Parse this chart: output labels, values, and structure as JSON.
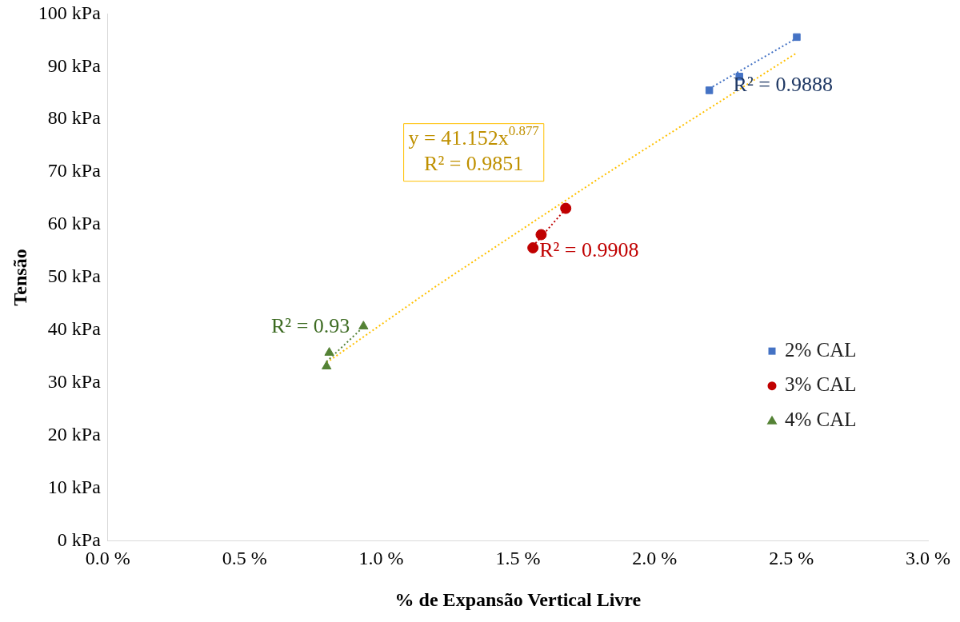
{
  "chart_data": {
    "type": "scatter",
    "xlabel": "% de Expansão Vertical Livre",
    "ylabel": "Tensão",
    "xlim": [
      0,
      3
    ],
    "ylim": [
      0,
      100
    ],
    "xticks": [
      {
        "value": 0,
        "label": "0.0 %"
      },
      {
        "value": 0.5,
        "label": "0.5 %"
      },
      {
        "value": 1,
        "label": "1.0 %"
      },
      {
        "value": 1.5,
        "label": "1.5 %"
      },
      {
        "value": 2,
        "label": "2.0 %"
      },
      {
        "value": 2.5,
        "label": "2.5 %"
      },
      {
        "value": 3,
        "label": "3.0 %"
      }
    ],
    "yticks": [
      {
        "value": 0,
        "label": "0 kPa"
      },
      {
        "value": 10,
        "label": "10 kPa"
      },
      {
        "value": 20,
        "label": "20 kPa"
      },
      {
        "value": 30,
        "label": "30 kPa"
      },
      {
        "value": 40,
        "label": "40 kPa"
      },
      {
        "value": 50,
        "label": "50 kPa"
      },
      {
        "value": 60,
        "label": "60 kPa"
      },
      {
        "value": 70,
        "label": "70 kPa"
      },
      {
        "value": 80,
        "label": "80 kPa"
      },
      {
        "value": 90,
        "label": "90 kPa"
      },
      {
        "value": 100,
        "label": "100 kPa"
      }
    ],
    "grid": false,
    "legend": "right",
    "series": [
      {
        "name": "2% CAL",
        "marker": "square",
        "color": "#4472c4",
        "x": [
          2.2,
          2.31,
          2.52
        ],
        "values": [
          85.5,
          88.1,
          95.6
        ]
      },
      {
        "name": "3% CAL",
        "marker": "circle",
        "color": "#c00000",
        "x": [
          1.555,
          1.585,
          1.675
        ],
        "values": [
          55.6,
          58.1,
          63.1
        ]
      },
      {
        "name": "4% CAL",
        "marker": "triangle",
        "color": "#548235",
        "x": [
          0.8,
          0.81,
          0.935
        ],
        "values": [
          33.1,
          35.7,
          40.7
        ]
      },
      {
        "type": "line",
        "marker": "none",
        "line_style": "dotted",
        "color": "#4472c4",
        "x": [
          2.2,
          2.52
        ],
        "values": [
          85.8,
          95.4
        ]
      },
      {
        "type": "line",
        "marker": "none",
        "line_style": "dotted",
        "color": "#c00000",
        "x": [
          1.555,
          1.675
        ],
        "values": [
          55.9,
          63.0
        ]
      },
      {
        "type": "line",
        "marker": "none",
        "line_style": "dotted",
        "color": "#548235",
        "x": [
          0.8,
          0.935
        ],
        "values": [
          34.0,
          40.6
        ]
      },
      {
        "type": "line",
        "marker": "none",
        "line_style": "dotted",
        "color": "#ffc000",
        "x": [
          0.8,
          1.2,
          1.8,
          2.52
        ],
        "values": [
          33.8,
          48.3,
          68.9,
          92.6
        ]
      }
    ],
    "annotations": [
      "R² = 0.9888",
      "R² = 0.9908",
      "R² = 0.93",
      "y = 41.152x$^{0.877}$",
      "R² = 0.9851"
    ]
  }
}
